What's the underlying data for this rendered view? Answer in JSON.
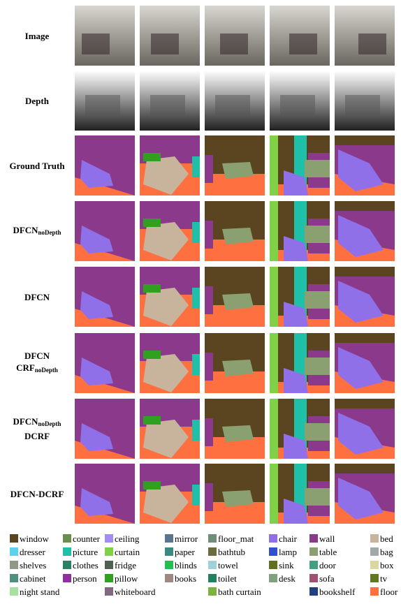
{
  "figure": {
    "row_labels": [
      [
        [
          {
            "text": "Image"
          }
        ]
      ],
      [
        [
          {
            "text": "Depth"
          }
        ]
      ],
      [
        [
          {
            "text": "Ground Truth"
          }
        ]
      ],
      [
        [
          {
            "text": "DFCN",
            "sub": "noDepth"
          }
        ]
      ],
      [
        [
          {
            "text": "DFCN"
          }
        ]
      ],
      [
        [
          {
            "text": "DFCN"
          }
        ],
        [
          {
            "text": "CRF",
            "sub": "noDepth"
          }
        ]
      ],
      [
        [
          {
            "text": "DFCN",
            "sub": "noDepth"
          }
        ],
        [
          {
            "text": "DCRF"
          }
        ]
      ],
      [
        [
          {
            "text": "DFCN-DCRF"
          }
        ]
      ]
    ],
    "legend": [
      [
        {
          "label": "window",
          "color": "#5b4520"
        },
        {
          "label": "counter",
          "color": "#6b8e4e"
        },
        {
          "label": "ceiling",
          "color": "#a58cf2"
        },
        {
          "label": "mirror",
          "color": "#5a7590"
        },
        {
          "label": "floor_mat",
          "color": "#6f8d78"
        },
        {
          "label": "chair",
          "color": "#9070e8"
        },
        {
          "label": "wall",
          "color": "#8b3a8b"
        },
        {
          "label": "bed",
          "color": "#c8b49c"
        }
      ],
      [
        {
          "label": "dresser",
          "color": "#60d0f0"
        },
        {
          "label": "picture",
          "color": "#20c0a8"
        },
        {
          "label": "curtain",
          "color": "#80d048"
        },
        {
          "label": "paper",
          "color": "#3a8a80"
        },
        {
          "label": "bathtub",
          "color": "#6b6b40"
        },
        {
          "label": "lamp",
          "color": "#3050d0"
        },
        {
          "label": "table",
          "color": "#8aa070"
        },
        {
          "label": "bag",
          "color": "#a0a8a8"
        }
      ],
      [
        {
          "label": "shelves",
          "color": "#909888"
        },
        {
          "label": "clothes",
          "color": "#2a8060"
        },
        {
          "label": "fridge",
          "color": "#506050"
        },
        {
          "label": "blinds",
          "color": "#20c050"
        },
        {
          "label": "towel",
          "color": "#a0d0d8"
        },
        {
          "label": "sink",
          "color": "#607020"
        },
        {
          "label": "door",
          "color": "#40a080"
        },
        {
          "label": "box",
          "color": "#d8d8a0"
        }
      ],
      [
        {
          "label": "cabinet",
          "color": "#509080"
        },
        {
          "label": "person",
          "color": "#9030a0"
        },
        {
          "label": "pillow",
          "color": "#30a020"
        },
        {
          "label": "books",
          "color": "#a08880"
        },
        {
          "label": "toilet",
          "color": "#208060"
        },
        {
          "label": "desk",
          "color": "#80a080"
        },
        {
          "label": "sofa",
          "color": "#a05070"
        },
        {
          "label": "tv",
          "color": "#607820"
        }
      ],
      [
        {
          "label": "night stand",
          "color": "#a8e0a0",
          "col": 0
        },
        {
          "label": "whiteboard",
          "color": "#806880",
          "col": 2
        },
        {
          "label": "bath curtain",
          "color": "#80b040",
          "col": 4
        },
        {
          "label": "bookshelf",
          "color": "#204080",
          "col": 6
        },
        {
          "label": "floor",
          "color": "#ff7040",
          "col": 7
        }
      ]
    ]
  }
}
